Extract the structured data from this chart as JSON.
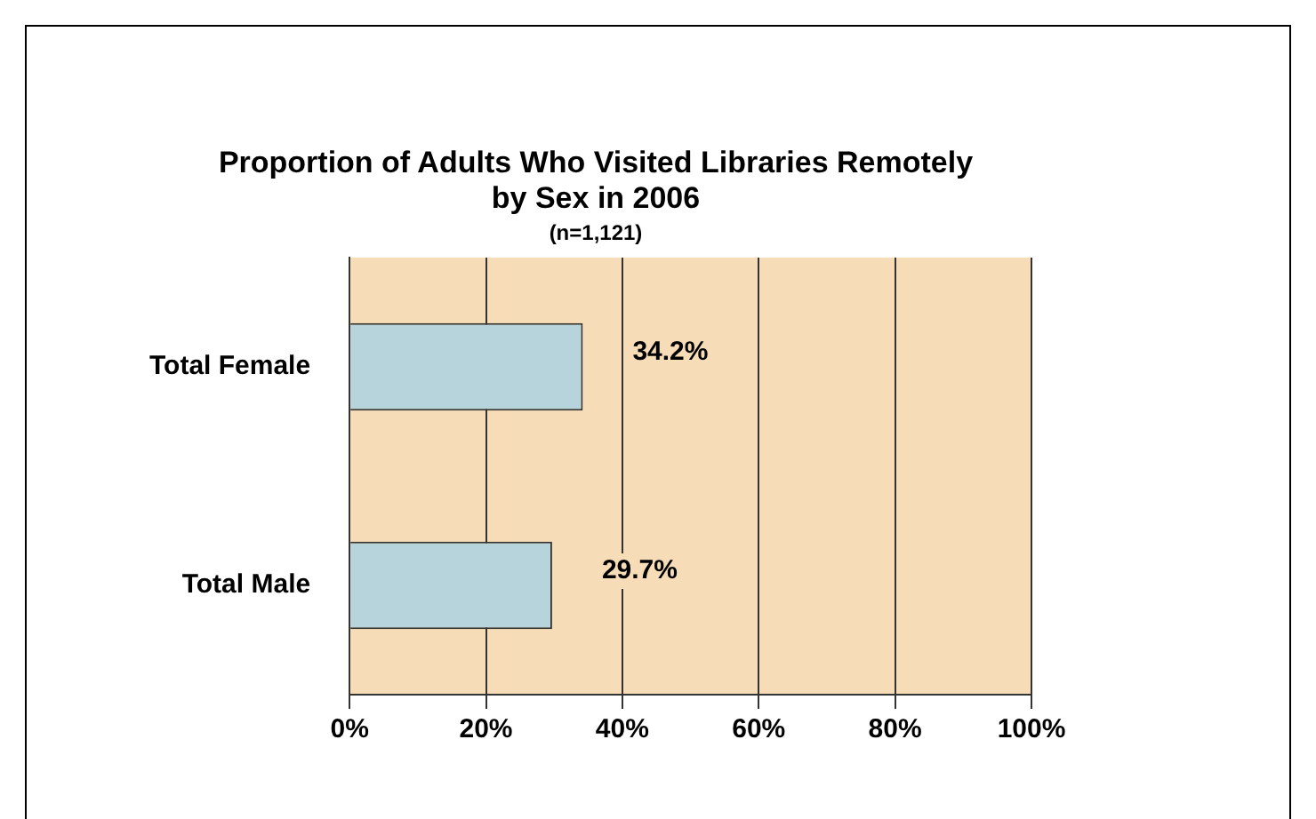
{
  "chart_data": {
    "type": "bar",
    "orientation": "horizontal",
    "title": "Proportion of Adults Who Visited Libraries Remotely by Sex in 2006",
    "subtitle": "(n=1,121)",
    "categories": [
      "Total Female",
      "Total Male"
    ],
    "values": [
      34.2,
      29.7
    ],
    "color": "#b7d3dc",
    "value_labels": [
      "34.2%",
      "29.7%"
    ],
    "xlim": [
      0,
      100
    ],
    "xticks": [
      {
        "value": 0,
        "label": "0%"
      },
      {
        "value": 20,
        "label": "20%"
      },
      {
        "value": 40,
        "label": "40%"
      },
      {
        "value": 60,
        "label": "60%"
      },
      {
        "value": 80,
        "label": "80%"
      },
      {
        "value": 100,
        "label": "100%"
      }
    ],
    "grid": "x",
    "legend": false
  }
}
